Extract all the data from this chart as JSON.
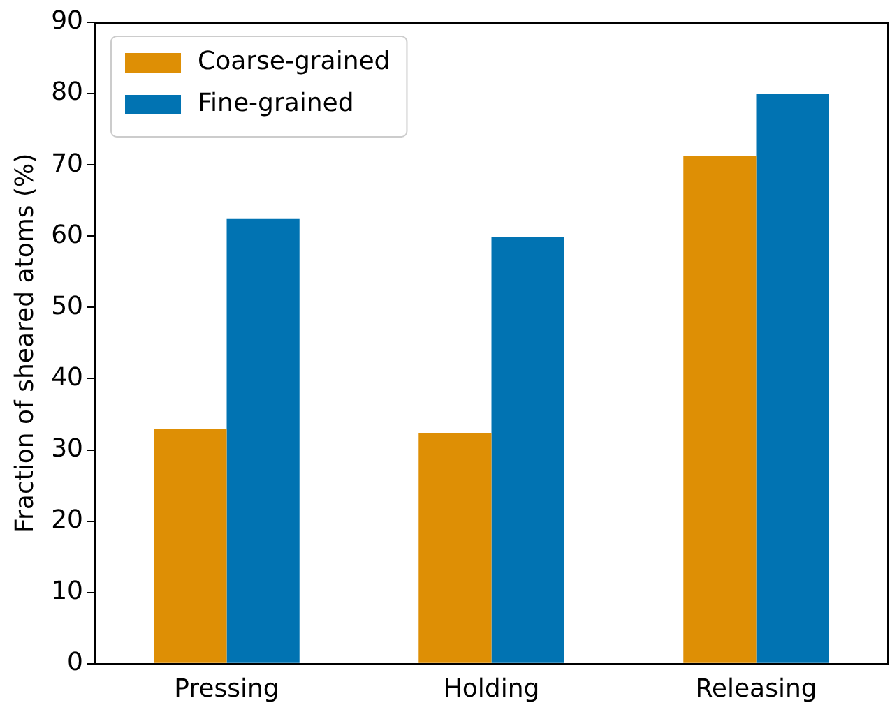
{
  "chart_data": {
    "type": "bar",
    "ylabel": "Fraction of sheared atoms (%)",
    "categories": [
      "Pressing",
      "Holding",
      "Releasing"
    ],
    "series": [
      {
        "name": "Coarse-grained",
        "color": "#de8f05",
        "values": [
          33.0,
          32.3,
          71.3
        ]
      },
      {
        "name": "Fine-grained",
        "color": "#0173b2",
        "values": [
          62.4,
          59.9,
          80.0
        ]
      }
    ],
    "ylim": [
      0,
      90
    ],
    "yticks": [
      0,
      10,
      20,
      30,
      40,
      50,
      60,
      70,
      80,
      90
    ],
    "grid": false,
    "legend": "top left"
  }
}
